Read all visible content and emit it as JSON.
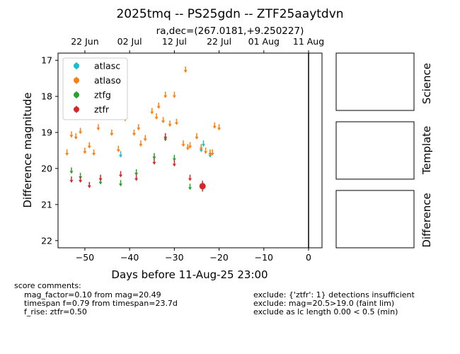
{
  "chart_data": {
    "type": "scatter",
    "title": "2025tmq -- PS25gdn -- ZTF25aaytdvn",
    "subtitle": "ra,dec=(267.0181,+9.250227)",
    "xlabel": "Days before 11-Aug-25 23:00",
    "ylabel": "Difference magnitude",
    "xlim": [
      -56,
      3
    ],
    "ylim": [
      22.2,
      16.8
    ],
    "y_inverted": true,
    "x_ticks": [
      -50,
      -40,
      -30,
      -20,
      -10,
      0
    ],
    "x_tick_labels": [
      "−50",
      "−40",
      "−30",
      "−20",
      "−10",
      "0"
    ],
    "y_ticks": [
      17,
      18,
      19,
      20,
      21,
      22
    ],
    "y_tick_labels": [
      "17",
      "18",
      "19",
      "20",
      "21",
      "22"
    ],
    "top_axis_ticks": [
      -50,
      -40,
      -30,
      -20,
      -10,
      0
    ],
    "top_axis_labels": [
      "22 Jun",
      "02 Jul",
      "12 Jul",
      "22 Jul",
      "01 Aug",
      "11 Aug"
    ],
    "vline_x": 0,
    "legend_position": "top-left",
    "series": [
      {
        "name": "atlasc",
        "color": "#17becf",
        "marker": "upper-limit",
        "x": [
          -42.0,
          -24.0,
          -23.5,
          -22.0
        ],
        "y": [
          19.6,
          19.45,
          19.3,
          19.6
        ]
      },
      {
        "name": "atlaso",
        "color": "#ff7f0e",
        "marker": "upper-limit",
        "x": [
          -54.0,
          -53.0,
          -52.0,
          -51.0,
          -50.0,
          -49.0,
          -48.0,
          -47.0,
          -44.0,
          -42.5,
          -41.0,
          -39.0,
          -38.0,
          -37.5,
          -36.5,
          -35.0,
          -34.0,
          -33.5,
          -32.5,
          -32.0,
          -31.0,
          -30.0,
          -29.5,
          -28.0,
          -27.5,
          -27.0,
          -26.5,
          -25.0,
          -24.0,
          -23.0,
          -22.0,
          -21.5,
          -21.0,
          -20.0
        ],
        "y": [
          19.55,
          19.05,
          19.1,
          18.95,
          19.5,
          19.35,
          19.55,
          18.85,
          19.0,
          19.45,
          18.6,
          19.0,
          18.85,
          19.3,
          19.15,
          18.4,
          18.55,
          18.25,
          18.65,
          17.95,
          18.75,
          17.95,
          18.7,
          19.3,
          17.25,
          19.4,
          19.35,
          19.1,
          19.4,
          19.5,
          19.55,
          19.55,
          18.8,
          18.85
        ]
      },
      {
        "name": "ztfg",
        "color": "#2ca02c",
        "marker": "upper-limit",
        "x": [
          -53.0,
          -51.0,
          -46.5,
          -42.0,
          -38.5,
          -34.5,
          -32.0,
          -30.0,
          -26.5
        ],
        "y": [
          20.05,
          20.2,
          20.35,
          20.4,
          20.1,
          19.65,
          19.15,
          19.7,
          20.5
        ]
      },
      {
        "name": "ztfr",
        "color": "#d62728",
        "marker": "upper-limit",
        "x": [
          -53.0,
          -51.0,
          -49.0,
          -46.5,
          -42.0,
          -38.5,
          -34.5,
          -32.0,
          -30.0,
          -26.5
        ],
        "y": [
          20.3,
          20.3,
          20.45,
          20.25,
          20.15,
          20.25,
          19.8,
          19.1,
          19.85,
          20.25
        ]
      },
      {
        "name": "ztfr-detection",
        "color": "#d62728",
        "marker": "point",
        "x": [
          -23.7
        ],
        "y": [
          20.49
        ],
        "yerr": [
          0.15
        ]
      }
    ]
  },
  "legend": [
    {
      "label": "atlasc",
      "color": "#17becf"
    },
    {
      "label": "atlaso",
      "color": "#ff7f0e"
    },
    {
      "label": "ztfg",
      "color": "#2ca02c"
    },
    {
      "label": "ztfr",
      "color": "#d62728"
    }
  ],
  "side_panels": [
    {
      "label": "Science"
    },
    {
      "label": "Template"
    },
    {
      "label": "Difference"
    }
  ],
  "comments": {
    "header": "score comments:",
    "left": [
      "mag_factor=0.10 from mag=20.49",
      "timespan f=0.79 from timespan=23.7d",
      "f_rise: ztfr=0.50"
    ],
    "right": [
      "exclude: {'ztfr': 1} detections insufficient",
      "exclude: mag=20.5>19.0 (faint lim)",
      "exclude as lc length 0.00 < 0.5 (min)"
    ]
  }
}
